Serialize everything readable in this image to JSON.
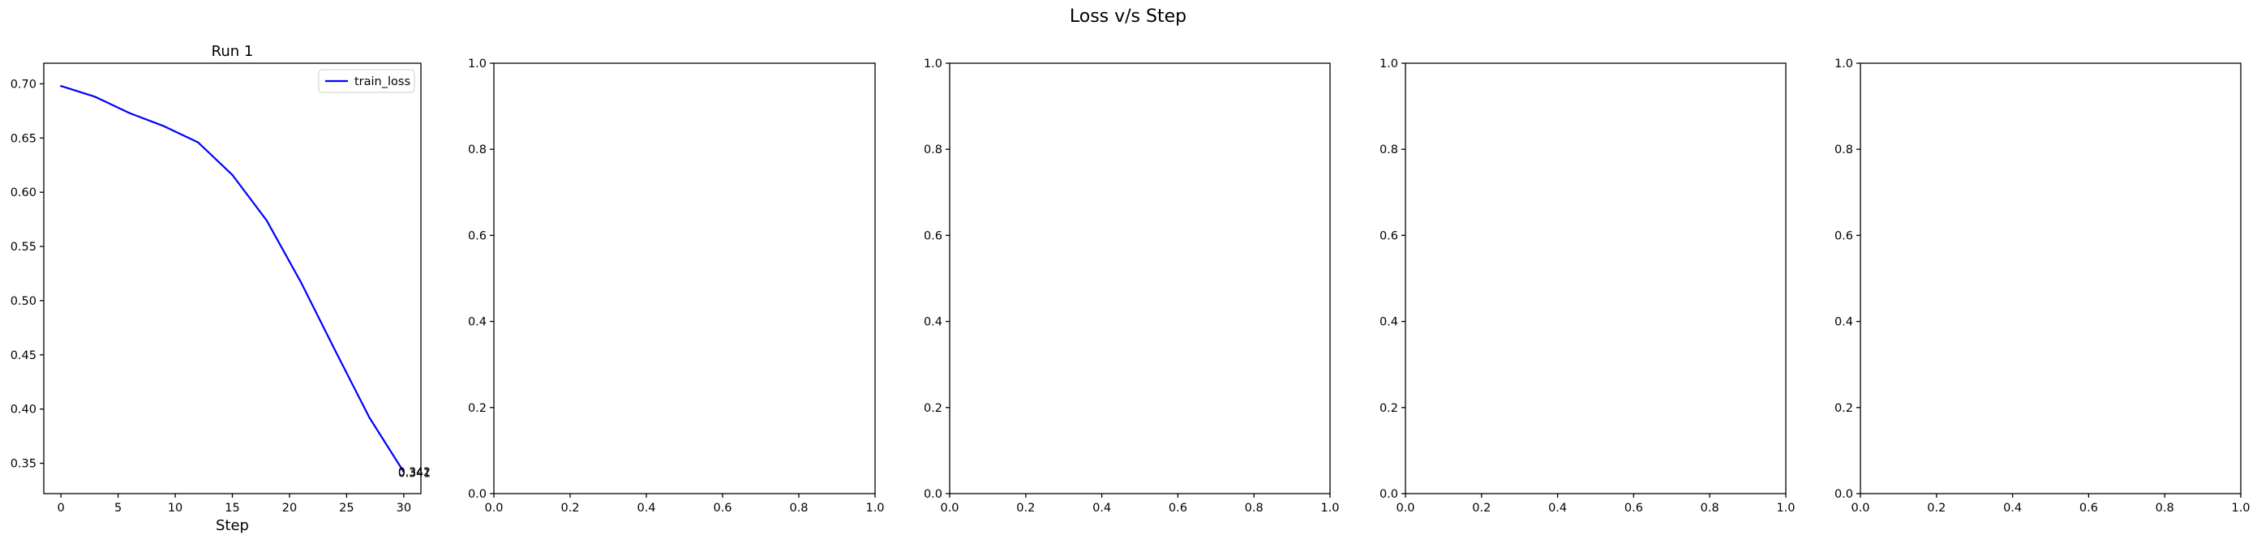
{
  "figure": {
    "suptitle": "Loss v/s Step"
  },
  "colors": {
    "series": "#0000ff",
    "axes": "#000000",
    "background": "#ffffff"
  },
  "chart_data": [
    {
      "type": "line",
      "title": "Run 1",
      "xlabel": "Step",
      "ylabel": "",
      "xlim": [
        -1.5,
        31.5
      ],
      "ylim": [
        0.322,
        0.719
      ],
      "xticks": [
        0,
        5,
        10,
        15,
        20,
        25,
        30
      ],
      "xtick_labels": [
        "0",
        "5",
        "10",
        "15",
        "20",
        "25",
        "30"
      ],
      "yticks": [
        0.35,
        0.4,
        0.45,
        0.5,
        0.55,
        0.6,
        0.65,
        0.7
      ],
      "ytick_labels": [
        "0.35",
        "0.40",
        "0.45",
        "0.50",
        "0.55",
        "0.60",
        "0.65",
        "0.70"
      ],
      "grid": false,
      "legend": {
        "position": "top-right",
        "entries": [
          "train_loss"
        ]
      },
      "series": [
        {
          "name": "train_loss",
          "color": "#0000ff",
          "x": [
            0,
            3,
            6,
            9,
            12,
            15,
            18,
            21,
            24,
            27,
            30
          ],
          "y": [
            0.698,
            0.688,
            0.673,
            0.661,
            0.646,
            0.616,
            0.574,
            0.517,
            0.454,
            0.392,
            0.342
          ]
        }
      ],
      "annotations": [
        {
          "x": 30,
          "y": 0.342,
          "text": "0.342"
        },
        {
          "x": 30,
          "y": 0.341,
          "text": "0.341"
        }
      ]
    },
    {
      "type": "line",
      "title": "",
      "xlim": [
        0,
        1
      ],
      "ylim": [
        0,
        1
      ],
      "xticks": [
        0,
        0.2,
        0.4,
        0.6,
        0.8,
        1.0
      ],
      "xtick_labels": [
        "0.0",
        "0.2",
        "0.4",
        "0.6",
        "0.8",
        "1.0"
      ],
      "yticks": [
        0,
        0.2,
        0.4,
        0.6,
        0.8,
        1.0
      ],
      "ytick_labels": [
        "0.0",
        "0.2",
        "0.4",
        "0.6",
        "0.8",
        "1.0"
      ],
      "series": []
    },
    {
      "type": "line",
      "title": "",
      "xlim": [
        0,
        1
      ],
      "ylim": [
        0,
        1
      ],
      "xticks": [
        0,
        0.2,
        0.4,
        0.6,
        0.8,
        1.0
      ],
      "xtick_labels": [
        "0.0",
        "0.2",
        "0.4",
        "0.6",
        "0.8",
        "1.0"
      ],
      "yticks": [
        0,
        0.2,
        0.4,
        0.6,
        0.8,
        1.0
      ],
      "ytick_labels": [
        "0.0",
        "0.2",
        "0.4",
        "0.6",
        "0.8",
        "1.0"
      ],
      "series": []
    },
    {
      "type": "line",
      "title": "",
      "xlim": [
        0,
        1
      ],
      "ylim": [
        0,
        1
      ],
      "xticks": [
        0,
        0.2,
        0.4,
        0.6,
        0.8,
        1.0
      ],
      "xtick_labels": [
        "0.0",
        "0.2",
        "0.4",
        "0.6",
        "0.8",
        "1.0"
      ],
      "yticks": [
        0,
        0.2,
        0.4,
        0.6,
        0.8,
        1.0
      ],
      "ytick_labels": [
        "0.0",
        "0.2",
        "0.4",
        "0.6",
        "0.8",
        "1.0"
      ],
      "series": []
    },
    {
      "type": "line",
      "title": "",
      "xlim": [
        0,
        1
      ],
      "ylim": [
        0,
        1
      ],
      "xticks": [
        0,
        0.2,
        0.4,
        0.6,
        0.8,
        1.0
      ],
      "xtick_labels": [
        "0.0",
        "0.2",
        "0.4",
        "0.6",
        "0.8",
        "1.0"
      ],
      "yticks": [
        0,
        0.2,
        0.4,
        0.6,
        0.8,
        1.0
      ],
      "ytick_labels": [
        "0.0",
        "0.2",
        "0.4",
        "0.6",
        "0.8",
        "1.0"
      ],
      "series": []
    }
  ]
}
